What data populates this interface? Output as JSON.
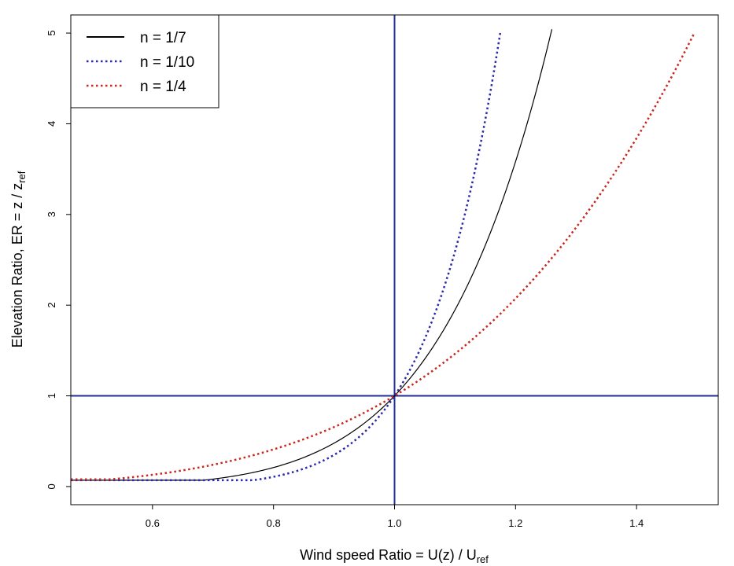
{
  "chart_data": {
    "type": "line",
    "title": "",
    "xlabel": {
      "main": "Wind speed Ratio = U(z) / U",
      "subscript": "ref"
    },
    "ylabel": {
      "main": "Elevation Ratio,  ER = z / z",
      "subscript": "ref"
    },
    "xlim": [
      0.465,
      1.535
    ],
    "ylim": [
      -0.2,
      5.2
    ],
    "xticks": [
      0.6,
      0.8,
      1.0,
      1.2,
      1.4
    ],
    "xtick_labels": [
      "0.6",
      "0.8",
      "1.0",
      "1.2",
      "1.4"
    ],
    "yticks": [
      0,
      1,
      2,
      3,
      4,
      5
    ],
    "ytick_labels": [
      "0",
      "1",
      "2",
      "3",
      "4",
      "5"
    ],
    "reference_lines": {
      "vertical_x": 1.0,
      "horizontal_y": 1.0,
      "color": "#1f2f99"
    },
    "legend_position": "top-left",
    "series": [
      {
        "name": "n = 1/7",
        "exponent": 7,
        "color": "#000000",
        "style": "solid",
        "x_start": 0.465,
        "x_end": 1.26,
        "floor_y": 0.07
      },
      {
        "name": "n = 1/10",
        "exponent": 10,
        "color": "#2a2aa8",
        "style": "dotted",
        "x_start": 0.465,
        "x_end": 1.175,
        "floor_y": 0.07
      },
      {
        "name": "n = 1/4",
        "exponent": 4,
        "color": "#c8281e",
        "style": "dotted",
        "x_start": 0.465,
        "x_end": 1.495,
        "floor_y": 0.08
      }
    ]
  }
}
